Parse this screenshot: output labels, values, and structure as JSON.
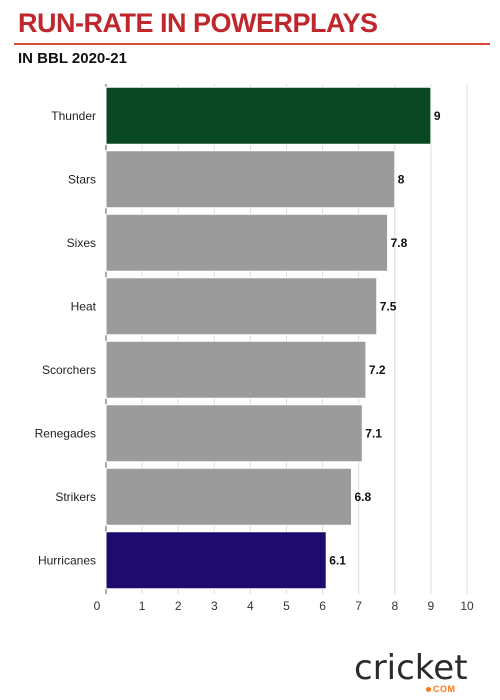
{
  "header": {
    "title": "RUN-RATE IN POWERPLAYS",
    "subtitle": "IN BBL 2020-21"
  },
  "brand": {
    "word": "cricket",
    "suffix": "COM"
  },
  "colors": {
    "title": "#c0272d",
    "rule": "#d64a3a",
    "default_bar": "#9b9b9b",
    "thunder_bar": "#0a4824",
    "hurricanes_bar": "#1f0a6e",
    "brand_accent": "#ff7a1a"
  },
  "chart_data": {
    "type": "bar",
    "orientation": "horizontal",
    "title": "RUN-RATE IN POWERPLAYS",
    "subtitle": "IN BBL 2020-21",
    "categories": [
      "Thunder",
      "Stars",
      "Sixes",
      "Heat",
      "Scorchers",
      "Renegades",
      "Strikers",
      "Hurricanes"
    ],
    "values": [
      9,
      8,
      7.8,
      7.5,
      7.2,
      7.1,
      6.8,
      6.1
    ],
    "bar_colors": [
      "#0a4824",
      "#9b9b9b",
      "#9b9b9b",
      "#9b9b9b",
      "#9b9b9b",
      "#9b9b9b",
      "#9b9b9b",
      "#1f0a6e"
    ],
    "xlim": [
      0,
      10
    ],
    "x_ticks": [
      0,
      1,
      2,
      3,
      4,
      5,
      6,
      7,
      8,
      9,
      10
    ],
    "grid": true,
    "data_labels": true
  }
}
